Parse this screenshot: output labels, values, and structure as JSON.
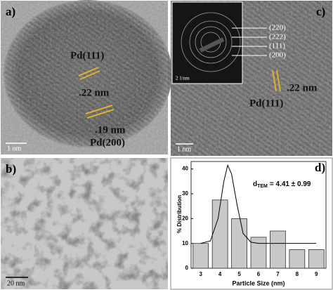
{
  "panels": {
    "a": {
      "label": "a)",
      "annotations": [
        "Pd(111)",
        ".22 nm",
        ".19 nm",
        "Pd(200)"
      ],
      "scale_bar": "1 nm"
    },
    "b": {
      "label": "b)",
      "scale_bar": "20 nm"
    },
    "c": {
      "label": "c)",
      "annotations": [
        "Pd(111)",
        ".22 nm"
      ],
      "scale_bar": "1 nm",
      "inset": {
        "rings": [
          "(220)",
          "(222)",
          "(111)",
          "(200)"
        ],
        "scale_bar": "2 1/nm"
      }
    }
  },
  "chart_data": {
    "type": "bar",
    "label": "d)",
    "annotation": {
      "symbol": "d",
      "subscript": "TEM",
      "value": "= 4.41 ± 0.99"
    },
    "x_label": "Particle Size (nm)",
    "y_label": "% Distribution",
    "x": [
      3,
      4,
      5,
      6,
      7,
      8,
      9
    ],
    "values": [
      10,
      27.5,
      20,
      12.5,
      15,
      7.5,
      7.5
    ],
    "color": "#c8c8c8",
    "fit": {
      "x": [
        3,
        3.5,
        3.9,
        4.2,
        4.4,
        4.6,
        4.9,
        5.2,
        5.6,
        6,
        9
      ],
      "y": [
        10,
        11,
        20,
        35,
        41.5,
        38,
        25,
        14,
        10.5,
        10,
        10
      ]
    },
    "xlim": [
      2.5,
      9.5
    ],
    "xticks": [
      3,
      4,
      5,
      6,
      7,
      8,
      9
    ],
    "ylim": [
      0,
      43
    ],
    "yticks": [
      0,
      10,
      20,
      30,
      40
    ]
  }
}
